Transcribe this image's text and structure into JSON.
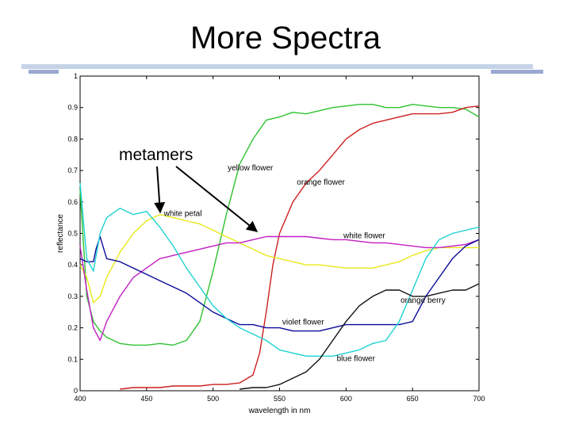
{
  "slide": {
    "title": "More Spectra"
  },
  "chart_data": {
    "type": "line",
    "title": "More Spectra",
    "xlabel": "wavelength in nm",
    "ylabel": "reflectance",
    "xlim": [
      400,
      700
    ],
    "ylim": [
      0,
      1
    ],
    "x_ticks": [
      400,
      450,
      500,
      550,
      600,
      650,
      700
    ],
    "y_ticks": [
      0,
      0.1,
      0.2,
      0.3,
      0.4,
      0.5,
      0.6,
      0.7,
      0.8,
      0.9,
      1
    ],
    "grid": false,
    "annotation": {
      "text": "metamers",
      "points_to": [
        "white petal",
        "white flower"
      ]
    },
    "series": [
      {
        "name": "yellow flower",
        "color": "#2ec22e",
        "label_at": [
          511,
          0.7
        ],
        "x": [
          400,
          405,
          410,
          415,
          420,
          430,
          440,
          450,
          460,
          470,
          480,
          490,
          500,
          510,
          520,
          530,
          540,
          550,
          560,
          570,
          580,
          590,
          600,
          610,
          620,
          630,
          640,
          650,
          660,
          670,
          680,
          690,
          700
        ],
        "y": [
          0.64,
          0.3,
          0.22,
          0.19,
          0.17,
          0.15,
          0.145,
          0.145,
          0.15,
          0.145,
          0.16,
          0.22,
          0.38,
          0.56,
          0.72,
          0.8,
          0.86,
          0.87,
          0.885,
          0.88,
          0.89,
          0.9,
          0.905,
          0.91,
          0.91,
          0.9,
          0.9,
          0.91,
          0.905,
          0.9,
          0.9,
          0.895,
          0.87
        ]
      },
      {
        "name": "orange flower",
        "color": "#cc1f1f",
        "label_at": [
          563,
          0.655
        ],
        "x": [
          430,
          440,
          450,
          460,
          470,
          480,
          490,
          500,
          510,
          520,
          530,
          535,
          540,
          545,
          550,
          555,
          560,
          570,
          580,
          590,
          600,
          610,
          620,
          630,
          640,
          650,
          660,
          670,
          680,
          690,
          700
        ],
        "y": [
          0.005,
          0.01,
          0.01,
          0.01,
          0.015,
          0.015,
          0.015,
          0.02,
          0.02,
          0.025,
          0.05,
          0.12,
          0.25,
          0.4,
          0.5,
          0.55,
          0.6,
          0.66,
          0.7,
          0.75,
          0.8,
          0.83,
          0.85,
          0.86,
          0.87,
          0.88,
          0.88,
          0.88,
          0.885,
          0.9,
          0.905
        ]
      },
      {
        "name": "white petal",
        "color": "#e8e81a",
        "label_at": [
          463,
          0.555
        ],
        "x": [
          400,
          405,
          410,
          415,
          420,
          430,
          440,
          450,
          460,
          470,
          480,
          490,
          500,
          510,
          520,
          530,
          540,
          550,
          560,
          570,
          580,
          590,
          600,
          610,
          620,
          630,
          640,
          650,
          660,
          670,
          680,
          690,
          700
        ],
        "y": [
          0.4,
          0.36,
          0.28,
          0.3,
          0.36,
          0.44,
          0.5,
          0.54,
          0.56,
          0.55,
          0.54,
          0.53,
          0.51,
          0.49,
          0.47,
          0.45,
          0.43,
          0.42,
          0.41,
          0.4,
          0.4,
          0.395,
          0.39,
          0.39,
          0.39,
          0.4,
          0.41,
          0.43,
          0.445,
          0.455,
          0.455,
          0.455,
          0.455
        ]
      },
      {
        "name": "white flower",
        "color": "#c21ec2",
        "label_at": [
          598,
          0.485
        ],
        "x": [
          400,
          405,
          410,
          415,
          420,
          430,
          440,
          450,
          460,
          470,
          480,
          490,
          500,
          510,
          520,
          530,
          540,
          550,
          560,
          570,
          580,
          590,
          600,
          610,
          620,
          630,
          640,
          650,
          660,
          670,
          680,
          690,
          700
        ],
        "y": [
          0.46,
          0.32,
          0.2,
          0.16,
          0.22,
          0.3,
          0.36,
          0.39,
          0.42,
          0.43,
          0.44,
          0.45,
          0.46,
          0.47,
          0.47,
          0.48,
          0.49,
          0.49,
          0.49,
          0.49,
          0.485,
          0.48,
          0.48,
          0.475,
          0.47,
          0.47,
          0.465,
          0.46,
          0.455,
          0.455,
          0.46,
          0.465,
          0.48
        ]
      },
      {
        "name": "violet flower",
        "color": "#0a0a9a",
        "label_at": [
          552,
          0.21
        ],
        "x": [
          400,
          405,
          410,
          412,
          415,
          420,
          430,
          440,
          450,
          460,
          470,
          480,
          490,
          500,
          510,
          520,
          530,
          540,
          550,
          560,
          570,
          580,
          590,
          600,
          610,
          620,
          630,
          640,
          650,
          660,
          670,
          680,
          690,
          700
        ],
        "y": [
          0.42,
          0.41,
          0.41,
          0.45,
          0.49,
          0.42,
          0.41,
          0.39,
          0.37,
          0.35,
          0.33,
          0.31,
          0.28,
          0.25,
          0.23,
          0.21,
          0.21,
          0.2,
          0.2,
          0.19,
          0.19,
          0.19,
          0.2,
          0.21,
          0.21,
          0.21,
          0.21,
          0.21,
          0.22,
          0.3,
          0.36,
          0.42,
          0.46,
          0.48
        ]
      },
      {
        "name": "blue flower",
        "color": "#1ed2d2",
        "label_at": [
          593,
          0.095
        ],
        "x": [
          400,
          405,
          410,
          415,
          420,
          430,
          440,
          450,
          460,
          470,
          480,
          490,
          500,
          510,
          520,
          530,
          540,
          550,
          560,
          570,
          580,
          590,
          600,
          610,
          620,
          630,
          640,
          650,
          660,
          670,
          680,
          690,
          700
        ],
        "y": [
          0.66,
          0.42,
          0.38,
          0.5,
          0.55,
          0.58,
          0.56,
          0.57,
          0.52,
          0.46,
          0.39,
          0.33,
          0.27,
          0.23,
          0.2,
          0.18,
          0.16,
          0.13,
          0.12,
          0.11,
          0.11,
          0.11,
          0.12,
          0.13,
          0.15,
          0.16,
          0.22,
          0.32,
          0.42,
          0.48,
          0.5,
          0.51,
          0.52
        ]
      },
      {
        "name": "orange berry",
        "color": "#111111",
        "label_at": [
          641,
          0.28
        ],
        "x": [
          520,
          530,
          540,
          550,
          560,
          570,
          575,
          580,
          590,
          600,
          610,
          620,
          630,
          640,
          650,
          660,
          670,
          680,
          690,
          700
        ],
        "y": [
          0.005,
          0.01,
          0.01,
          0.02,
          0.04,
          0.06,
          0.08,
          0.1,
          0.16,
          0.22,
          0.27,
          0.3,
          0.32,
          0.32,
          0.3,
          0.3,
          0.31,
          0.32,
          0.32,
          0.34
        ]
      }
    ]
  }
}
